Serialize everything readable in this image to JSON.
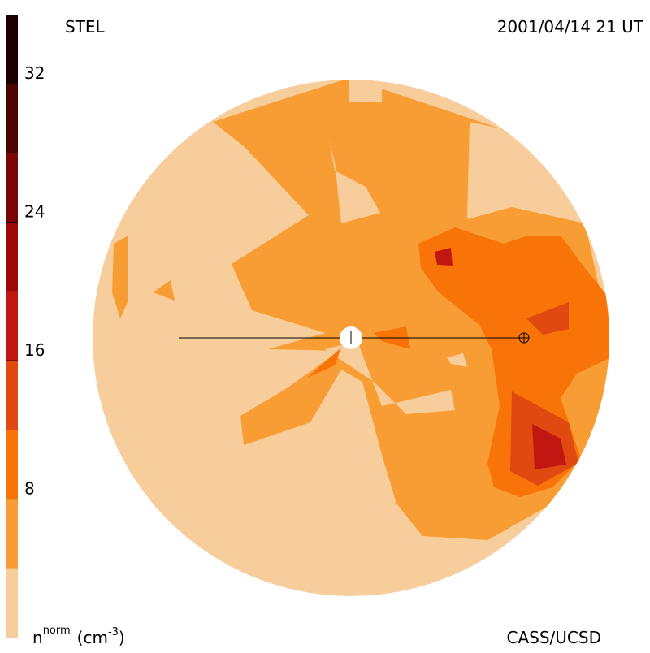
{
  "chart_data": {
    "type": "contour-map",
    "title": "STEL",
    "subtitle": "2001/04/14 21 UT",
    "credit": "CASS/UCSD",
    "colorbar_label": {
      "symbol": "n",
      "sup": "norm",
      "unit": "(cm",
      "unit_sup": "-3",
      "close": ")"
    },
    "levels": [
      0,
      4,
      8,
      12,
      16,
      20,
      24,
      28,
      32,
      36
    ],
    "colors": [
      "#f8cd9c",
      "#f89c34",
      "#f87408",
      "#e04a10",
      "#c01810",
      "#a00808",
      "#7a0404",
      "#4c0202",
      "#1c0000"
    ],
    "ylim": [
      0,
      36
    ],
    "yticks": [
      8,
      16,
      24,
      32
    ]
  }
}
